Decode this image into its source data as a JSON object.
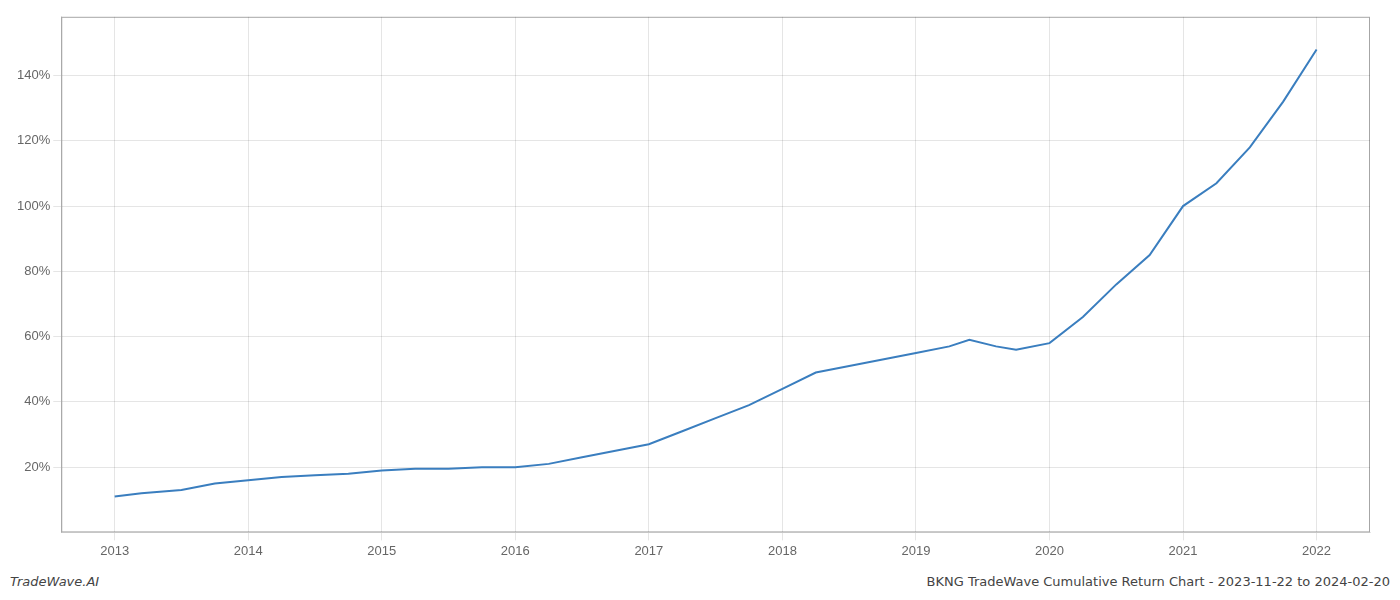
{
  "chart_data": {
    "type": "line",
    "x": [
      2013.0,
      2013.2,
      2013.5,
      2013.75,
      2014.0,
      2014.25,
      2014.5,
      2014.75,
      2015.0,
      2015.25,
      2015.5,
      2015.75,
      2016.0,
      2016.25,
      2016.5,
      2016.75,
      2017.0,
      2017.25,
      2017.5,
      2017.75,
      2018.0,
      2018.25,
      2018.5,
      2018.75,
      2019.0,
      2019.25,
      2019.4,
      2019.6,
      2019.75,
      2020.0,
      2020.25,
      2020.5,
      2020.75,
      2021.0,
      2021.25,
      2021.5,
      2021.75,
      2022.0
    ],
    "values": [
      11,
      12,
      13,
      15,
      16,
      17,
      17.5,
      18,
      19,
      19.5,
      19.5,
      20,
      20.0,
      21,
      23,
      25,
      27,
      31,
      35,
      39,
      44,
      49,
      51,
      53,
      55,
      57,
      59,
      57,
      56,
      58,
      66,
      76,
      85,
      100,
      107,
      118,
      132,
      148
    ],
    "color": "#3a7ebf",
    "xlim": [
      2012.6,
      2022.4
    ],
    "ylim": [
      0,
      158
    ],
    "xticks": [
      2013,
      2014,
      2015,
      2016,
      2017,
      2018,
      2019,
      2020,
      2021,
      2022
    ],
    "yticks": [
      {
        "value": 20,
        "label": "20%"
      },
      {
        "value": 40,
        "label": "40%"
      },
      {
        "value": 60,
        "label": "60%"
      },
      {
        "value": 80,
        "label": "80%"
      },
      {
        "value": 100,
        "label": "100%"
      },
      {
        "value": 120,
        "label": "120%"
      },
      {
        "value": 140,
        "label": "140%"
      }
    ],
    "grid": true,
    "annotations": [
      "TradeWave.AI",
      "BKNG TradeWave Cumulative Return Chart - 2023-11-22 to 2024-02-20"
    ]
  }
}
